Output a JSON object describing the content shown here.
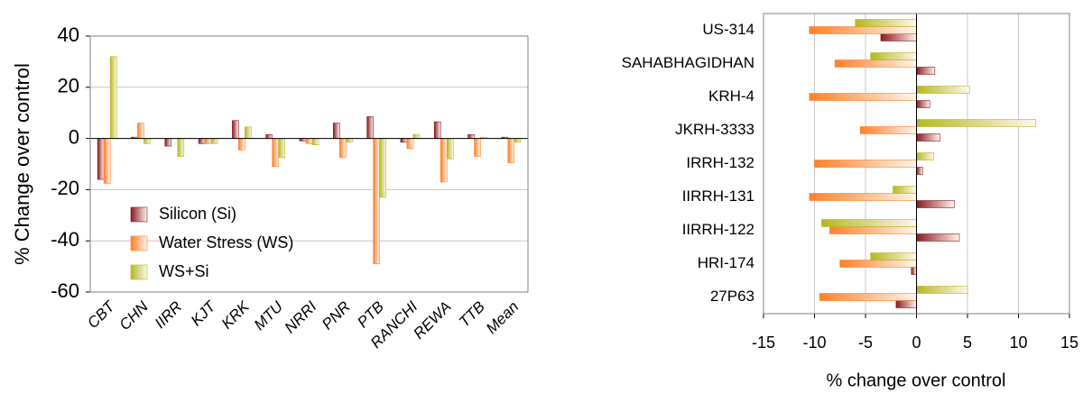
{
  "chart_data": [
    {
      "type": "bar",
      "ylabel": "% Change over control",
      "categories": [
        "CBT",
        "CHN",
        "IIRR",
        "KJT",
        "KRK",
        "MTU",
        "NRRI",
        "PNR",
        "PTB",
        "RANCHI",
        "REWA",
        "TTB",
        "Mean"
      ],
      "series": [
        {
          "name": "Silicon (Si)",
          "color": "#8b1a22",
          "values": [
            -16,
            0.5,
            -3,
            -2,
            7,
            1.5,
            -1,
            6,
            8.5,
            -1.5,
            6.5,
            1.5,
            0.5
          ]
        },
        {
          "name": "Water Stress (WS)",
          "color": "#ff7f27",
          "values": [
            -17.5,
            6,
            0,
            -2,
            -4.5,
            -11,
            -2,
            -7.5,
            -49,
            -4,
            -17,
            -7,
            -9.5
          ]
        },
        {
          "name": "WS+Si",
          "color": "#b5b81e",
          "values": [
            32,
            -2,
            -7,
            -2,
            4.5,
            -7.5,
            -2.5,
            -1.5,
            -23,
            1.5,
            -8,
            0.5,
            -1.5
          ]
        }
      ],
      "ylim": [
        -60,
        40
      ],
      "yticks": [
        -60,
        -40,
        -20,
        0,
        20,
        40
      ],
      "grid": true,
      "legend": "lower left"
    },
    {
      "type": "barh",
      "xlabel": "% change over control",
      "categories": [
        "US-314",
        "SAHABHAGIDHAN",
        "KRH-4",
        "JKRH-3333",
        "IRRH-132",
        "IIRRH-131",
        "IIRRH-122",
        "HRI-174",
        "27P63"
      ],
      "series": [
        {
          "color": "#8b1a22",
          "values": [
            -3.5,
            1.8,
            1.3,
            2.3,
            0.6,
            3.7,
            4.2,
            -0.5,
            -2
          ]
        },
        {
          "color": "#ff7f27",
          "values": [
            -10.5,
            -8,
            -10.5,
            -5.5,
            -10,
            -10.5,
            -8.5,
            -7.5,
            -9.5
          ]
        },
        {
          "color": "#b5b81e",
          "values": [
            -6,
            -4.5,
            5.2,
            11.7,
            1.7,
            -2.3,
            -9.3,
            -4.5,
            5
          ]
        }
      ],
      "xlim": [
        -15,
        15
      ],
      "xticks": [
        -15,
        -10,
        -5,
        0,
        5,
        10,
        15
      ],
      "grid": true
    }
  ]
}
